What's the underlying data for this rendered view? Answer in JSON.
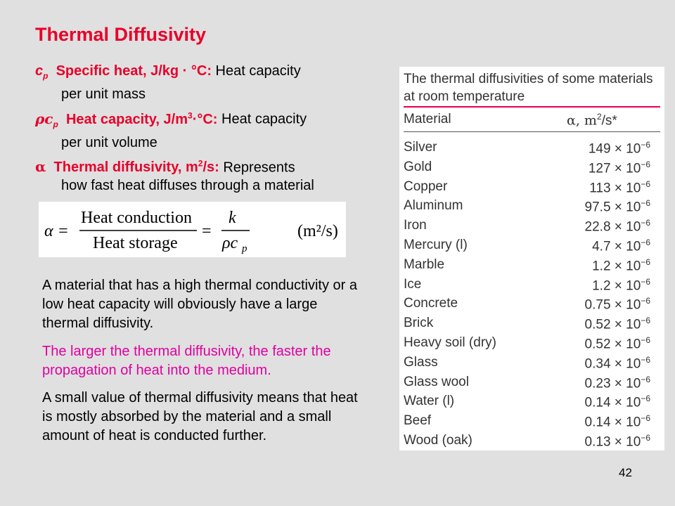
{
  "title": "Thermal Diffusivity",
  "definitions": [
    {
      "symbol": "c",
      "subscript": "p",
      "term": "Specific heat, J/kg · °C:",
      "desc_line1": " Heat capacity",
      "desc_line2": "per unit mass"
    },
    {
      "symbol": "ρc",
      "subscript": "p",
      "term_pre": "Heat capacity, J/m",
      "term_sup": "3",
      "term_post": "·°C:",
      "desc_line1": " Heat capacity",
      "desc_line2": "per unit volume"
    },
    {
      "symbol": "α",
      "term_pre": "Thermal diffusivity, m",
      "term_sup": "2",
      "term_post": "/s:",
      "desc_line1": " Represents",
      "desc_line2": "how fast heat diffuses through a material"
    }
  ],
  "formula": {
    "lhs": "α =",
    "numerator": "Heat conduction",
    "denominator": "Heat storage",
    "eq2": "=",
    "k": "k",
    "rho_c": "ρc",
    "p": "p",
    "units": "(m²/s)"
  },
  "paragraphs": {
    "p1": "A material that has a high thermal conductivity or a low heat capacity will obviously have a large thermal diffusivity.",
    "p2": "The larger the thermal diffusivity, the faster the propagation of heat into the medium.",
    "p3": "A small value of thermal diffusivity means that heat is mostly absorbed by the material and a small amount of heat is conducted further."
  },
  "table": {
    "caption": "The thermal diffusivities of some materials at room temperature",
    "col_material": "Material",
    "col_alpha_pre": "α, m",
    "col_alpha_sup": "2",
    "col_alpha_post": "/s*",
    "exp_sup": "−6",
    "rows": [
      {
        "material": "Silver",
        "value": "149 × 10"
      },
      {
        "material": "Gold",
        "value": "127 × 10"
      },
      {
        "material": "Copper",
        "value": "113 × 10"
      },
      {
        "material": "Aluminum",
        "value": "97.5 × 10"
      },
      {
        "material": "Iron",
        "value": "22.8 × 10"
      },
      {
        "material": "Mercury (l)",
        "value": "4.7 × 10"
      },
      {
        "material": "Marble",
        "value": "1.2 × 10"
      },
      {
        "material": "Ice",
        "value": "1.2 × 10"
      },
      {
        "material": "Concrete",
        "value": "0.75 × 10"
      },
      {
        "material": "Brick",
        "value": "0.52 × 10"
      },
      {
        "material": "Heavy soil (dry)",
        "value": "0.52 × 10"
      },
      {
        "material": "Glass",
        "value": "0.34 × 10"
      },
      {
        "material": "Glass wool",
        "value": "0.23 × 10"
      },
      {
        "material": "Water (l)",
        "value": "0.14 × 10"
      },
      {
        "material": "Beef",
        "value": "0.14 × 10"
      },
      {
        "material": "Wood (oak)",
        "value": "0.13 × 10"
      }
    ]
  },
  "page_number": "42",
  "colors": {
    "title": "#e8002a",
    "highlight": "#e000a0",
    "background": "#e0e0e0"
  }
}
